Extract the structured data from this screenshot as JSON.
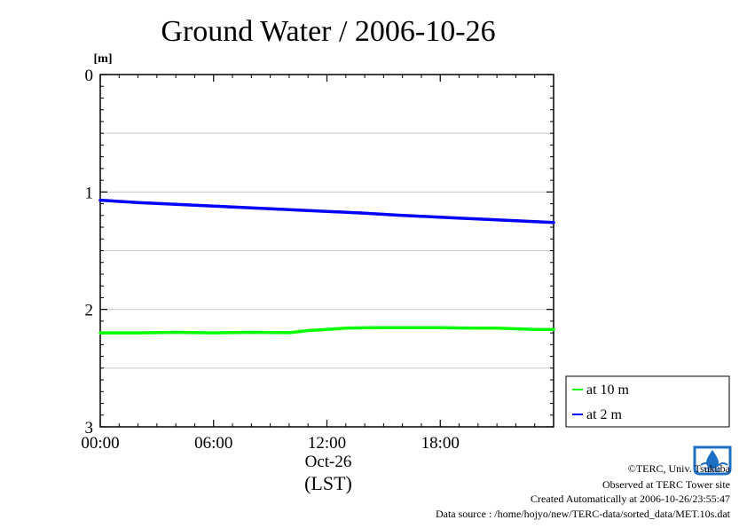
{
  "chart_data": {
    "type": "line",
    "title": "Ground Water / 2006-10-26",
    "ylabel": "[m]",
    "xlabel": "(LST)",
    "date_label": "Oct-26",
    "xlim_hours": [
      0,
      24
    ],
    "ylim": [
      0,
      3
    ],
    "y_inverted": true,
    "y_ticks": [
      "0",
      "1",
      "2",
      "3"
    ],
    "y_tick_values": [
      0,
      1,
      2,
      3
    ],
    "x_ticks": [
      "00:00",
      "06:00",
      "12:00",
      "18:00"
    ],
    "x_tick_values": [
      0,
      6,
      12,
      18
    ],
    "grid": "horizontal",
    "legend_position": "right",
    "series": [
      {
        "name": "at 10 m",
        "color": "#00ff00",
        "x_hours": [
          0,
          2,
          4,
          6,
          8,
          10,
          10.5,
          11,
          12,
          13,
          14,
          15,
          16,
          17,
          18,
          19,
          20,
          21,
          22,
          23,
          24
        ],
        "values": [
          2.2,
          2.2,
          2.195,
          2.2,
          2.195,
          2.198,
          2.19,
          2.18,
          2.17,
          2.16,
          2.157,
          2.155,
          2.155,
          2.155,
          2.155,
          2.158,
          2.16,
          2.16,
          2.165,
          2.17,
          2.17
        ]
      },
      {
        "name": "at 2 m",
        "color": "#0000ff",
        "x_hours": [
          0,
          2,
          4,
          6,
          8,
          10,
          12,
          14,
          16,
          18,
          20,
          22,
          24
        ],
        "values": [
          1.07,
          1.09,
          1.105,
          1.12,
          1.135,
          1.15,
          1.165,
          1.18,
          1.2,
          1.215,
          1.23,
          1.245,
          1.26
        ]
      }
    ]
  },
  "footer": {
    "copyright": "©TERC, Univ. Tsukuba",
    "observed": "Observed at TERC Tower site",
    "created": "Created Automatically at 2006-10-26/23:55:47",
    "source": "Data source : /home/hojyo/new/TERC-data/sorted_data/MET.10s.dat",
    "logo_text": "TERC",
    "logo_color": "#1d6fc6"
  }
}
